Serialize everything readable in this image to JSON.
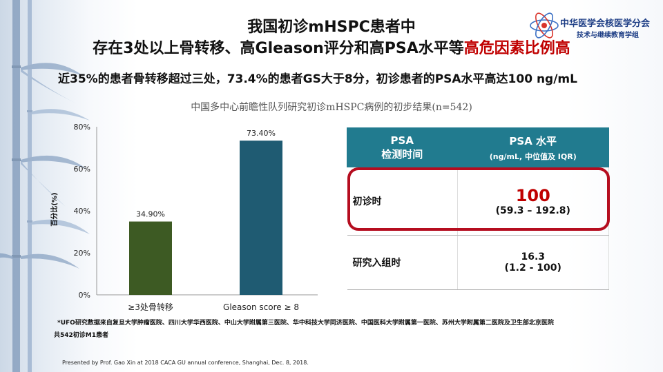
{
  "logo": {
    "org_line1": "中华医学会核医学分会",
    "org_line2": "技术与继续教育学组",
    "icon": "atom-icon"
  },
  "slide": {
    "title_line1": "我国初诊mHSPC患者中",
    "title_line2_prefix": "存在3处以上骨转移、高Gleason评分和高PSA水平等",
    "title_line2_highlight": "高危因素比例高",
    "subtitle": "近35%的患者骨转移超过三处，73.4%的患者GS大于8分，初诊患者的PSA水平高达100 ng/mL",
    "cohort_note": "中国多中心前瞻性队列研究初诊mHSPC病例的初步结果(n=542)",
    "footnote_line1": "*UFO研究数据来自复旦大学肿瘤医院、四川大学华西医院、中山大学附属第三医院、华中科技大学同济医院、中国医科大学附属第一医院、苏州大学附属第二医院及卫生部北京医院",
    "footnote_line2": "共542初诊M1患者",
    "credit": "Presented by Prof. Gao Xin at 2018 CACA GU annual conference, Shanghai, Dec. 8, 2018."
  },
  "chart_data": {
    "type": "bar",
    "categories": [
      "≥3处骨转移",
      "Gleason score ≥ 8"
    ],
    "values": [
      34.9,
      73.4
    ],
    "value_labels": [
      "34.90%",
      "73.40%"
    ],
    "ylabel": "百分比(%)",
    "ylim": [
      0,
      80
    ],
    "yticks": [
      0,
      20,
      40,
      60,
      80
    ],
    "ytick_labels": [
      "0%",
      "20%",
      "40%",
      "60%",
      "80%"
    ],
    "colors": [
      "#3d5a23",
      "#1f5b72"
    ],
    "grid": false,
    "legend": "none"
  },
  "psa_table": {
    "header_col1_line1": "PSA",
    "header_col1_line2": "检测时间",
    "header_col2_line1": "PSA 水平",
    "header_col2_line2": "(ng/mL, 中位值及 IQR)",
    "header_color": "#217b8f",
    "highlight_color": "#b50d1f",
    "rows": [
      {
        "label": "初诊时",
        "value": "100",
        "range": "(59.3 – 192.8)"
      },
      {
        "label": "研究入组时",
        "value": "16.3",
        "range": "(1.2 - 100)"
      }
    ]
  }
}
